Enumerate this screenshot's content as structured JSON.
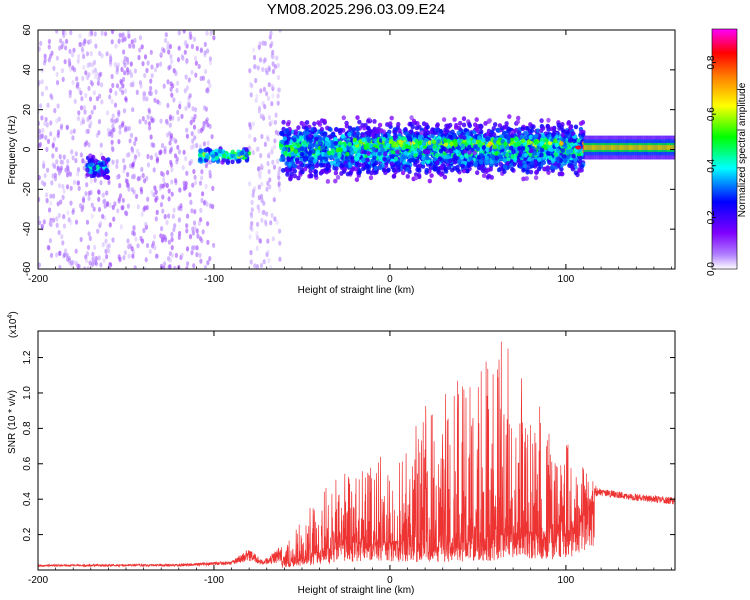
{
  "chart_data": [
    {
      "type": "heatmap",
      "title": "YM08.2025.296.03.09.E24",
      "xlabel": "Height of straight line (km)",
      "ylabel": "Frequency (Hz)",
      "xlim": [
        -200,
        162
      ],
      "ylim": [
        -60,
        60
      ],
      "xticks": [
        -200,
        -100,
        0,
        100
      ],
      "yticks": [
        -60,
        -40,
        -20,
        0,
        20,
        40,
        60
      ],
      "grid": false,
      "colorbar": {
        "label": "Normalized spectral amplitude",
        "range": [
          0.0,
          0.93
        ],
        "ticks": [
          0.0,
          0.2,
          0.4,
          0.6,
          0.8
        ],
        "colormap": [
          "#ffffff",
          "#7f00ff",
          "#0000ff",
          "#00ffff",
          "#00ff00",
          "#ffff00",
          "#ff8000",
          "#ff0000",
          "#ff00ff"
        ]
      },
      "bands": [
        {
          "x_from": -200,
          "x_to": -160,
          "spread_hz": 60,
          "amplitude": 0.05,
          "note": "sparse scattered noise"
        },
        {
          "x_from": -172,
          "x_to": -160,
          "center_hz": -9,
          "spread_hz": 8,
          "amplitude": 0.25
        },
        {
          "x_from": -160,
          "x_to": -100,
          "spread_hz": 60,
          "amplitude": 0.06,
          "note": "scattered noise"
        },
        {
          "x_from": -108,
          "x_to": -80,
          "center_hz": -3,
          "spread_hz": 5,
          "amplitude": 0.35
        },
        {
          "x_from": -80,
          "x_to": -62,
          "spread_hz": 60,
          "amplitude": 0.04,
          "note": "faint scattered noise"
        },
        {
          "x_from": -62,
          "x_to": 110,
          "center_hz": 0,
          "spread_hz": 18,
          "amplitude": 0.3
        },
        {
          "x_from": -20,
          "x_to": 100,
          "center_hz": 3,
          "spread_hz": 6,
          "amplitude": 0.38
        },
        {
          "x_from": 110,
          "x_to": 162,
          "center_hz": 1,
          "spread_hz": 4,
          "amplitude": 0.7
        }
      ]
    },
    {
      "type": "line",
      "xlabel": "Height of straight line (km)",
      "ylabel": "SNR (10 * v/v)",
      "exponent_label": "(x10",
      "exponent_power": "4",
      "exponent_close": ")",
      "xlim": [
        -200,
        162
      ],
      "ylim": [
        0.0,
        1.35
      ],
      "xticks": [
        -200,
        -100,
        0,
        100
      ],
      "yticks": [
        0.2,
        0.4,
        0.6,
        0.8,
        1.0,
        1.2
      ],
      "series_color": "#ee3333",
      "envelope": [
        {
          "x": -200,
          "base": 0.02,
          "peak": 0.03
        },
        {
          "x": -120,
          "base": 0.02,
          "peak": 0.035
        },
        {
          "x": -90,
          "base": 0.03,
          "peak": 0.05
        },
        {
          "x": -80,
          "base": 0.05,
          "peak": 0.12
        },
        {
          "x": -72,
          "base": 0.03,
          "peak": 0.05
        },
        {
          "x": -55,
          "base": 0.05,
          "peak": 0.2
        },
        {
          "x": -40,
          "base": 0.1,
          "peak": 0.45
        },
        {
          "x": -25,
          "base": 0.15,
          "peak": 0.55
        },
        {
          "x": -10,
          "base": 0.15,
          "peak": 0.6
        },
        {
          "x": 10,
          "base": 0.15,
          "peak": 0.8
        },
        {
          "x": 30,
          "base": 0.15,
          "peak": 1.05
        },
        {
          "x": 50,
          "base": 0.15,
          "peak": 1.15
        },
        {
          "x": 65,
          "base": 0.2,
          "peak": 1.35
        },
        {
          "x": 80,
          "base": 0.2,
          "peak": 1.0
        },
        {
          "x": 95,
          "base": 0.2,
          "peak": 0.8
        },
        {
          "x": 110,
          "base": 0.3,
          "peak": 0.6
        },
        {
          "x": 118,
          "base": 0.42,
          "peak": 0.46
        },
        {
          "x": 140,
          "base": 0.39,
          "peak": 0.43
        },
        {
          "x": 162,
          "base": 0.37,
          "peak": 0.41
        }
      ]
    }
  ]
}
